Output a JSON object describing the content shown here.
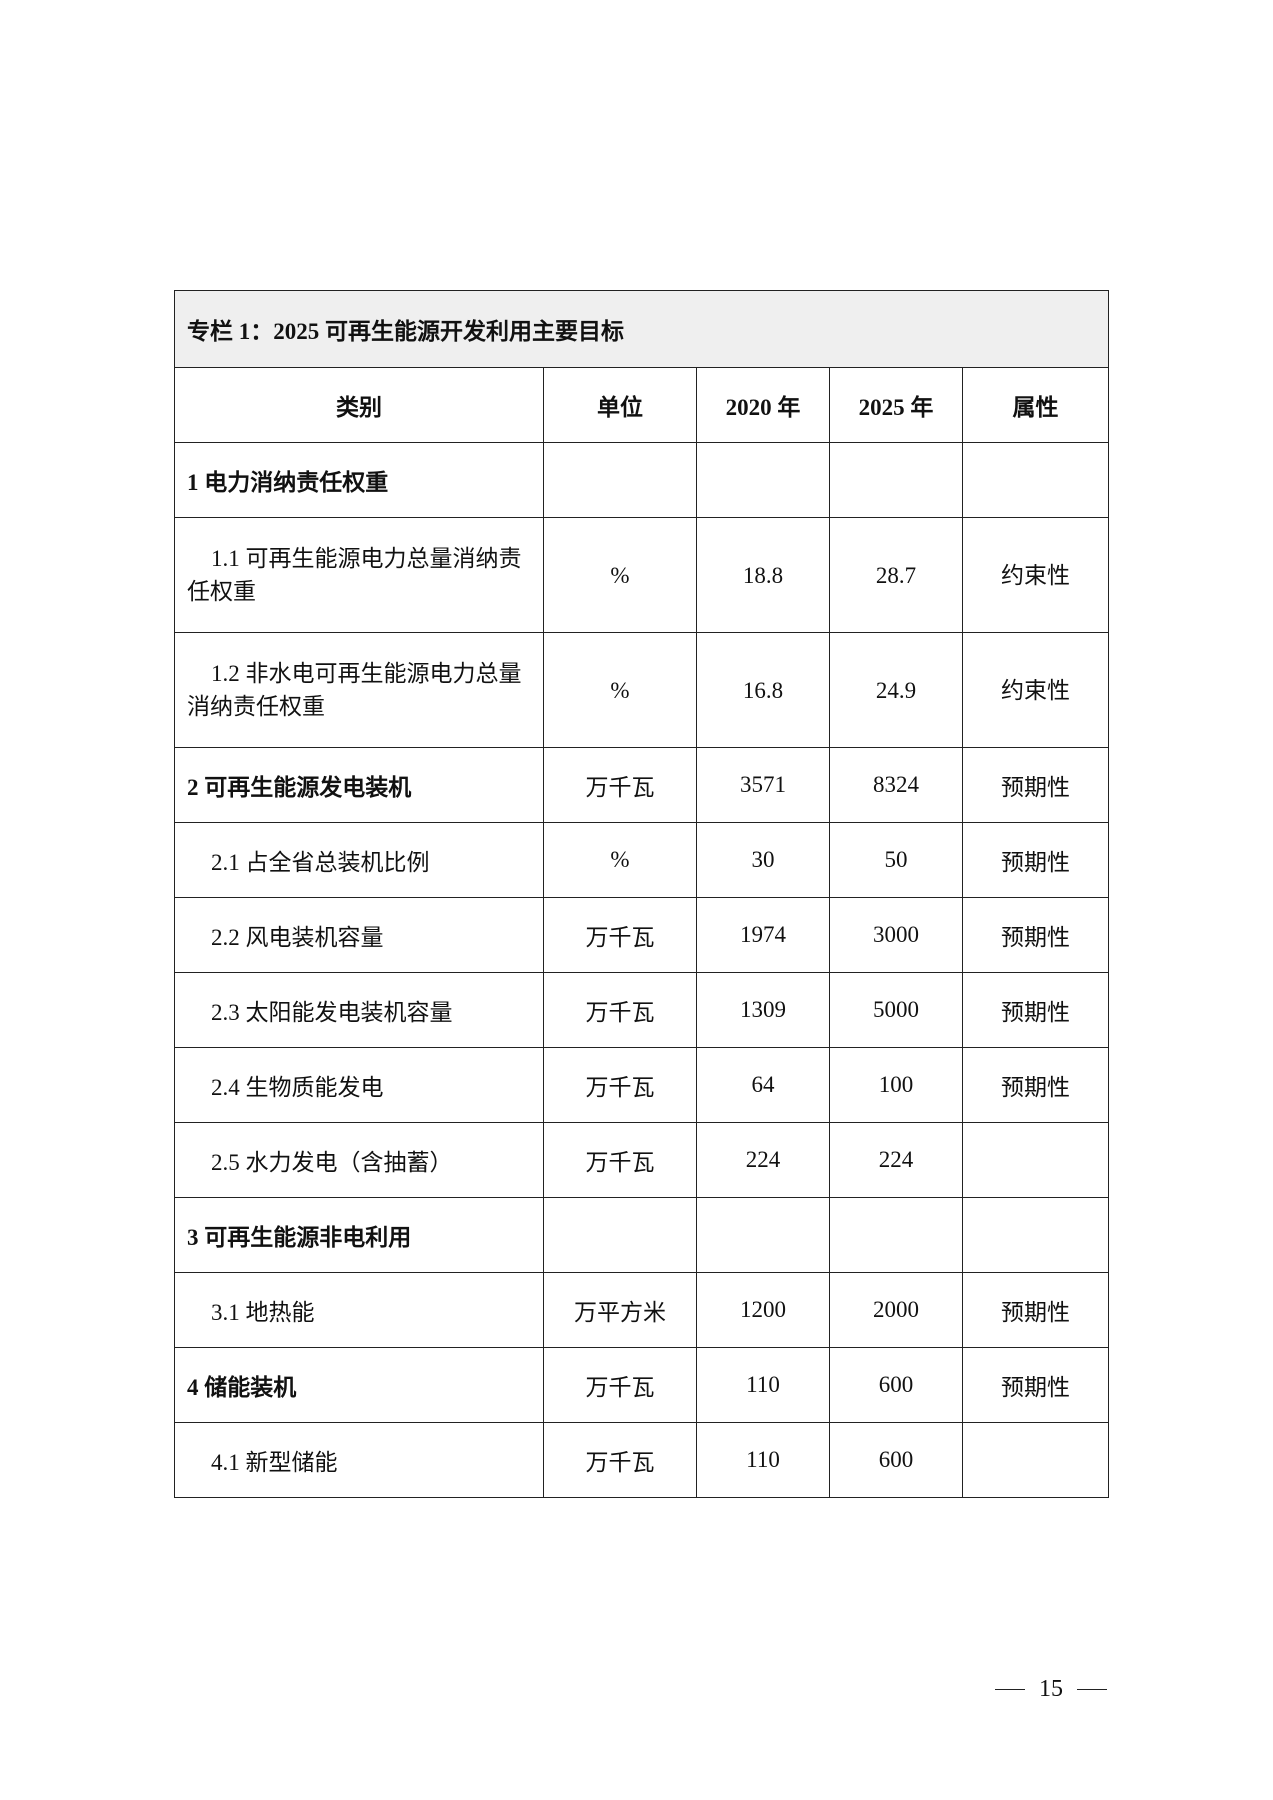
{
  "title": "专栏 1：2025 可再生能源开发利用主要目标",
  "headers": [
    "类别",
    "单位",
    "2020 年",
    "2025 年",
    "属性"
  ],
  "rows": [
    {
      "category": "1 电力消纳责任权重",
      "unit": "",
      "y2020": "",
      "y2025": "",
      "attr": "",
      "level": 1
    },
    {
      "category": "1.1 可再生能源电力总量消纳责任权重",
      "unit": "%",
      "y2020": "18.8",
      "y2025": "28.7",
      "attr": "约束性",
      "level": 2
    },
    {
      "category": "1.2 非水电可再生能源电力总量消纳责任权重",
      "unit": "%",
      "y2020": "16.8",
      "y2025": "24.9",
      "attr": "约束性",
      "level": 2
    },
    {
      "category": "2 可再生能源发电装机",
      "unit": "万千瓦",
      "y2020": "3571",
      "y2025": "8324",
      "attr": "预期性",
      "level": 1
    },
    {
      "category": "2.1 占全省总装机比例",
      "unit": "%",
      "y2020": "30",
      "y2025": "50",
      "attr": "预期性",
      "level": 2
    },
    {
      "category": "2.2 风电装机容量",
      "unit": "万千瓦",
      "y2020": "1974",
      "y2025": "3000",
      "attr": "预期性",
      "level": 2
    },
    {
      "category": "2.3 太阳能发电装机容量",
      "unit": "万千瓦",
      "y2020": "1309",
      "y2025": "5000",
      "attr": "预期性",
      "level": 2
    },
    {
      "category": "2.4 生物质能发电",
      "unit": "万千瓦",
      "y2020": "64",
      "y2025": "100",
      "attr": "预期性",
      "level": 2
    },
    {
      "category": "2.5 水力发电（含抽蓄）",
      "unit": "万千瓦",
      "y2020": "224",
      "y2025": "224",
      "attr": "",
      "level": 2
    },
    {
      "category": "3 可再生能源非电利用",
      "unit": "",
      "y2020": "",
      "y2025": "",
      "attr": "",
      "level": 1
    },
    {
      "category": "3.1 地热能",
      "unit": "万平方米",
      "y2020": "1200",
      "y2025": "2000",
      "attr": "预期性",
      "level": 2
    },
    {
      "category": "4 储能装机",
      "unit": "万千瓦",
      "y2020": "110",
      "y2025": "600",
      "attr": "预期性",
      "level": 1
    },
    {
      "category": "4.1 新型储能",
      "unit": "万千瓦",
      "y2020": "110",
      "y2025": "600",
      "attr": "",
      "level": 2
    }
  ],
  "page_number": "15"
}
